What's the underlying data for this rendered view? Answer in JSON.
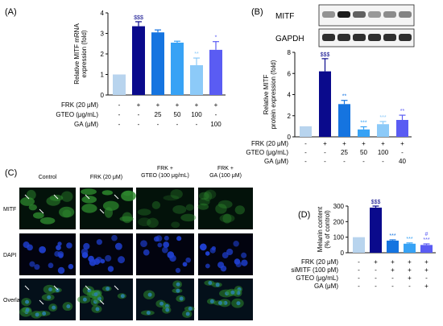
{
  "panels": {
    "A": {
      "label": "(A)"
    },
    "B": {
      "label": "(B)",
      "blot_labels": [
        "MITF",
        "GAPDH"
      ]
    },
    "C": {
      "label": "(C)",
      "columns": [
        "Control",
        "FRK (20 μM)",
        "FRK +\nGTEO (100 μg/mL)",
        "FRK +\nGA (100 μM)"
      ],
      "rows": [
        "MITF",
        "DAPI",
        "Overlap"
      ],
      "colors": {
        "mitf": "#2e8b2e",
        "dapi": "#1f3fd0",
        "overlap": "#2a7fa8"
      }
    },
    "D": {
      "label": "(D)"
    }
  },
  "chart_data": [
    {
      "id": "A",
      "type": "bar",
      "ylabel": "Relative MITF mRNA\nexpression (fold)",
      "ylim": [
        0,
        4
      ],
      "yticks": [
        "0",
        "1",
        "2",
        "3",
        "4"
      ],
      "values": [
        1.0,
        3.35,
        3.05,
        2.55,
        1.45,
        2.2
      ],
      "errors": [
        0,
        0.22,
        0.12,
        0.07,
        0.35,
        0.4
      ],
      "annotations": [
        "",
        "$$$",
        "",
        "",
        "**",
        "*"
      ],
      "colors": [
        "#b8d4ee",
        "#0a0a8c",
        "#1574e0",
        "#37a2f5",
        "#8ccaf8",
        "#5a5cf3"
      ],
      "treatments": [
        {
          "name": "FRK (20 μM)",
          "values": [
            "-",
            "+",
            "+",
            "+",
            "+",
            "+"
          ]
        },
        {
          "name": "GTEO (μg/mL)",
          "values": [
            "-",
            "-",
            "25",
            "50",
            "100",
            "-"
          ]
        },
        {
          "name": "GA (μM)",
          "values": [
            "-",
            "-",
            "-",
            "-",
            "-",
            "100"
          ]
        }
      ]
    },
    {
      "id": "B",
      "type": "bar",
      "ylabel": "Relative MITF\nprotein expression (fold)",
      "ylim": [
        0,
        8
      ],
      "yticks": [
        "0",
        "2",
        "4",
        "6",
        "8"
      ],
      "values": [
        1.0,
        6.2,
        3.1,
        0.7,
        1.2,
        1.6
      ],
      "errors": [
        0,
        1.2,
        0.35,
        0.25,
        0.25,
        0.45
      ],
      "annotations": [
        "",
        "$$$",
        "**",
        "***",
        "***",
        "**"
      ],
      "colors": [
        "#b8d4ee",
        "#0a0a8c",
        "#1574e0",
        "#37a2f5",
        "#8ccaf8",
        "#5a5cf3"
      ],
      "treatments": [
        {
          "name": "FRK (20 μM)",
          "values": [
            "-",
            "+",
            "+",
            "+",
            "+",
            "+"
          ]
        },
        {
          "name": "GTEO (μg/mL)",
          "values": [
            "-",
            "-",
            "25",
            "50",
            "100",
            "-"
          ]
        },
        {
          "name": "GA (μM)",
          "values": [
            "-",
            "-",
            "-",
            "-",
            "-",
            "40"
          ]
        }
      ]
    },
    {
      "id": "D",
      "type": "bar",
      "ylabel": "Melanin content\n(% of control)",
      "ylim": [
        0,
        300
      ],
      "yticks": [
        "0",
        "100",
        "200",
        "300"
      ],
      "values": [
        100,
        290,
        78,
        58,
        50
      ],
      "errors": [
        0,
        10,
        5,
        5,
        7
      ],
      "annotations": [
        "",
        "$$$",
        "***",
        "***",
        "#\n***"
      ],
      "colors": [
        "#b8d4ee",
        "#0a0a8c",
        "#1574e0",
        "#37a2f5",
        "#5a5cf3"
      ],
      "treatments": [
        {
          "name": "FRK (20 μM)",
          "values": [
            "-",
            "+",
            "+",
            "+",
            "+"
          ]
        },
        {
          "name": "siMITF (100 pM)",
          "values": [
            "-",
            "-",
            "+",
            "+",
            "+"
          ]
        },
        {
          "name": "GTEO (μg/mL)",
          "values": [
            "-",
            "-",
            "-",
            "+",
            "-"
          ]
        },
        {
          "name": "GA (μM)",
          "values": [
            "-",
            "-",
            "-",
            "-",
            "+"
          ]
        }
      ]
    }
  ]
}
